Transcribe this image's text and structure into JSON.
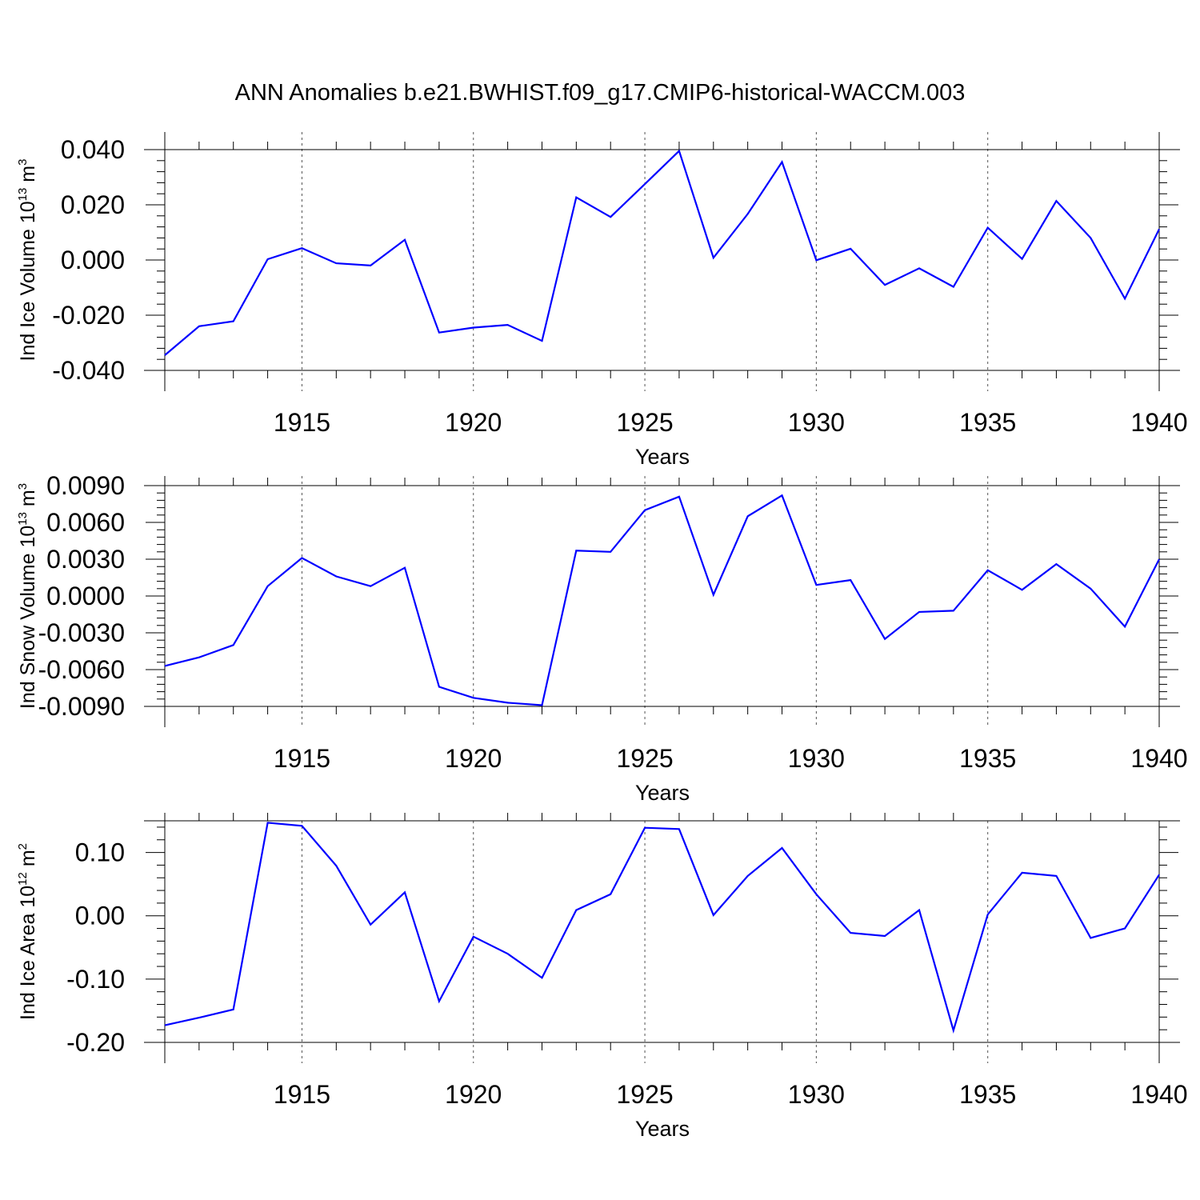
{
  "chart_data": {
    "type": "line",
    "title": "ANN Anomalies b.e21.BWHIST.f09_g17.CMIP6-historical-WACCM.003",
    "x": [
      1911,
      1912,
      1913,
      1914,
      1915,
      1916,
      1917,
      1918,
      1919,
      1920,
      1921,
      1922,
      1923,
      1924,
      1925,
      1926,
      1927,
      1928,
      1929,
      1930,
      1931,
      1932,
      1933,
      1934,
      1935,
      1936,
      1937,
      1938,
      1939,
      1940
    ],
    "xlim": [
      1911,
      1940
    ],
    "xticks": [
      1915,
      1920,
      1925,
      1930,
      1935,
      1940
    ],
    "series_color": "#0000ff",
    "panels": [
      {
        "ylabel_main": "Ind Ice Volume 10",
        "ylabel_exp": "13",
        "ylabel_unit": " m",
        "ylabel_unit_exp": "3",
        "xlabel": "Years",
        "ylim": [
          -0.04,
          0.04
        ],
        "yticks": [
          0.04,
          0.02,
          0.0,
          -0.02,
          -0.04
        ],
        "ytick_labels": [
          "0.040",
          "0.020",
          "0.000",
          "-0.020",
          "-0.040"
        ],
        "values": [
          -0.0345,
          -0.024,
          -0.0222,
          0.0003,
          0.0043,
          -0.0012,
          -0.002,
          0.0073,
          -0.0263,
          -0.0245,
          -0.0235,
          -0.0293,
          0.0227,
          0.0156,
          0.0275,
          0.0395,
          0.0008,
          0.0167,
          0.0355,
          -0.0001,
          0.0041,
          -0.009,
          -0.003,
          -0.0097,
          0.0117,
          0.0004,
          0.0214,
          0.008,
          -0.014,
          0.0112
        ]
      },
      {
        "ylabel_main": "Ind Snow Volume 10",
        "ylabel_exp": "13",
        "ylabel_unit": " m",
        "ylabel_unit_exp": "3",
        "xlabel": "Years",
        "ylim": [
          -0.009,
          0.009
        ],
        "yticks": [
          0.009,
          0.006,
          0.003,
          0.0,
          -0.003,
          -0.006,
          -0.009
        ],
        "ytick_labels": [
          "0.0090",
          "0.0060",
          "0.0030",
          "0.0000",
          "-0.0030",
          "-0.0060",
          "-0.0090"
        ],
        "values": [
          -0.0057,
          -0.005,
          -0.004,
          0.0008,
          0.0031,
          0.0016,
          0.0008,
          0.0023,
          -0.0074,
          -0.0083,
          -0.0087,
          -0.0089,
          0.0037,
          0.0036,
          0.007,
          0.0081,
          0.0001,
          0.0065,
          0.0082,
          0.0009,
          0.0013,
          -0.0035,
          -0.0013,
          -0.0012,
          0.0021,
          0.0005,
          0.0026,
          0.0006,
          -0.0025,
          0.003
        ]
      },
      {
        "ylabel_main": "Ind Ice Area 10",
        "ylabel_exp": "12",
        "ylabel_unit": " m",
        "ylabel_unit_exp": "2",
        "xlabel": "Years",
        "ylim": [
          -0.2,
          0.15
        ],
        "yticks": [
          0.1,
          0.0,
          -0.1,
          -0.2
        ],
        "ytick_labels": [
          "0.10",
          "0.00",
          "-0.10",
          "-0.20"
        ],
        "values": [
          -0.173,
          -0.161,
          -0.148,
          0.147,
          0.142,
          0.079,
          -0.014,
          0.037,
          -0.135,
          -0.033,
          -0.06,
          -0.098,
          0.009,
          0.034,
          0.139,
          0.137,
          0.001,
          0.063,
          0.107,
          0.034,
          -0.027,
          -0.032,
          0.009,
          -0.181,
          0.002,
          0.068,
          0.063,
          -0.035,
          -0.02,
          0.065
        ]
      }
    ]
  }
}
